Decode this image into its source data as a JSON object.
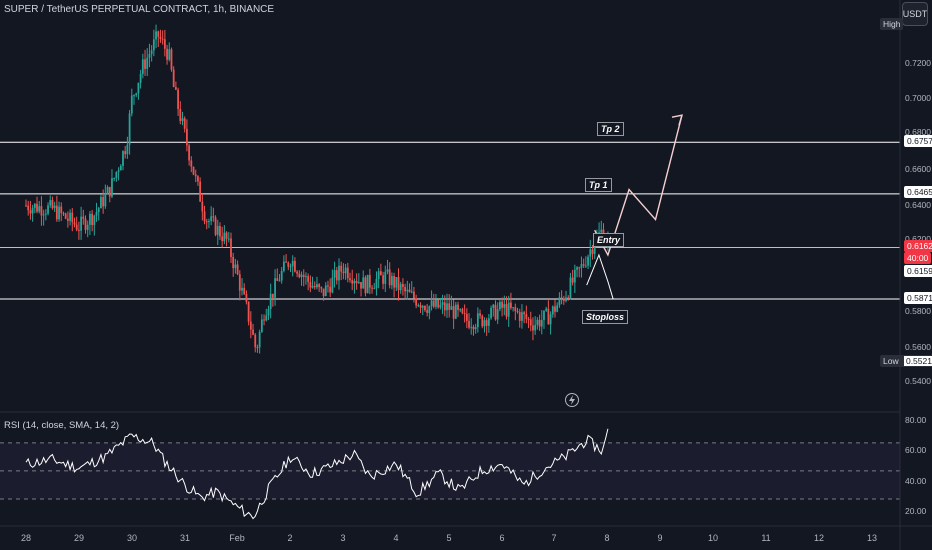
{
  "title": "SUPER / TetherUS PERPETUAL CONTRACT, 1h, BINANCE",
  "currency_button": "USDT",
  "rsi_label": "RSI (14, close, SMA, 14, 2)",
  "high_label": "High",
  "low_label": "Low",
  "low_value": "0.5521",
  "countdown": "40:00",
  "lightning_icon": "lightning-icon",
  "colors": {
    "background": "#131722",
    "up_candle": "#26a69a",
    "down_candle": "#ef5350",
    "entry_line": "#f7a8a8",
    "level_line": "#ffffff",
    "rsi_line": "#ffffff",
    "rsi_band": "#7e57c2",
    "price_label": "#f23645"
  },
  "chart_data": [
    {
      "type": "candlestick",
      "title": "SUPER / TetherUS PERPETUAL CONTRACT, 1h, BINANCE",
      "x_ticks": [
        "28",
        "29",
        "30",
        "31",
        "Feb",
        "2",
        "3",
        "4",
        "5",
        "6",
        "7",
        "8",
        "9",
        "10",
        "11",
        "12",
        "13"
      ],
      "y_ticks": [
        "0.7200",
        "0.7000",
        "0.6800",
        "0.6600",
        "0.6400",
        "0.6200",
        "0.5800",
        "0.5600",
        "0.5400"
      ],
      "ylim": [
        0.53,
        0.742
      ],
      "price_path": [
        [
          0.0,
          0.64
        ],
        [
          0.5,
          0.638
        ],
        [
          1.0,
          0.628
        ],
        [
          1.3,
          0.635
        ],
        [
          1.6,
          0.65
        ],
        [
          1.9,
          0.675
        ],
        [
          2.0,
          0.7
        ],
        [
          2.2,
          0.718
        ],
        [
          2.4,
          0.73
        ],
        [
          2.5,
          0.736
        ],
        [
          2.7,
          0.725
        ],
        [
          2.8,
          0.705
        ],
        [
          3.0,
          0.68
        ],
        [
          3.2,
          0.655
        ],
        [
          3.4,
          0.633
        ],
        [
          3.6,
          0.627
        ],
        [
          3.8,
          0.62
        ],
        [
          4.0,
          0.6
        ],
        [
          4.2,
          0.578
        ],
        [
          4.35,
          0.558
        ],
        [
          4.5,
          0.58
        ],
        [
          4.8,
          0.6
        ],
        [
          5.0,
          0.61
        ],
        [
          5.3,
          0.598
        ],
        [
          5.6,
          0.59
        ],
        [
          6.0,
          0.605
        ],
        [
          6.4,
          0.595
        ],
        [
          6.8,
          0.6
        ],
        [
          7.2,
          0.59
        ],
        [
          7.6,
          0.583
        ],
        [
          8.0,
          0.582
        ],
        [
          8.3,
          0.575
        ],
        [
          8.6,
          0.575
        ],
        [
          9.0,
          0.582
        ],
        [
          9.3,
          0.579
        ],
        [
          9.6,
          0.573
        ],
        [
          9.9,
          0.578
        ],
        [
          10.2,
          0.59
        ],
        [
          10.5,
          0.605
        ],
        [
          10.75,
          0.62
        ],
        [
          10.9,
          0.626
        ],
        [
          11.0,
          0.62
        ]
      ],
      "levels": [
        {
          "name": "Tp 2",
          "price": 0.6757,
          "label": "0.6757"
        },
        {
          "name": "Tp 1",
          "price": 0.6465,
          "label": "0.6465"
        },
        {
          "name": "Entry",
          "price": 0.6162,
          "label": "0.6162"
        },
        {
          "name": "Stoploss",
          "price": 0.5871,
          "label": "0.5871"
        }
      ],
      "current_price": "0.6162",
      "secondary_price": "0.6159",
      "annotations": [
        "Tp 2",
        "Tp 1",
        "Entry",
        "Stoploss"
      ],
      "projection_path": [
        [
          10.75,
          0.626
        ],
        [
          11.0,
          0.612
        ],
        [
          11.4,
          0.649
        ],
        [
          11.9,
          0.632
        ],
        [
          12.4,
          0.691
        ]
      ],
      "small_zigzag": [
        [
          10.6,
          0.595
        ],
        [
          10.83,
          0.612
        ],
        [
          11.0,
          0.597
        ],
        [
          11.1,
          0.587
        ]
      ]
    },
    {
      "type": "line",
      "title": "RSI (14, close, SMA, 14, 2)",
      "y_ticks": [
        "80.00",
        "60.00",
        "40.00",
        "20.00"
      ],
      "ylim": [
        15,
        82
      ],
      "bands": [
        70,
        50,
        30
      ],
      "rsi_path": [
        [
          0.0,
          55
        ],
        [
          0.5,
          58
        ],
        [
          1.0,
          52
        ],
        [
          1.5,
          60
        ],
        [
          2.0,
          75
        ],
        [
          2.4,
          70
        ],
        [
          2.6,
          58
        ],
        [
          3.0,
          40
        ],
        [
          3.3,
          31
        ],
        [
          3.6,
          35
        ],
        [
          4.0,
          24
        ],
        [
          4.3,
          17
        ],
        [
          4.6,
          38
        ],
        [
          5.0,
          60
        ],
        [
          5.4,
          48
        ],
        [
          5.8,
          54
        ],
        [
          6.2,
          62
        ],
        [
          6.5,
          46
        ],
        [
          7.0,
          55
        ],
        [
          7.4,
          34
        ],
        [
          7.8,
          48
        ],
        [
          8.2,
          36
        ],
        [
          8.6,
          50
        ],
        [
          9.0,
          55
        ],
        [
          9.4,
          40
        ],
        [
          9.8,
          52
        ],
        [
          10.2,
          60
        ],
        [
          10.6,
          72
        ],
        [
          10.9,
          64
        ],
        [
          11.0,
          78
        ]
      ]
    }
  ]
}
